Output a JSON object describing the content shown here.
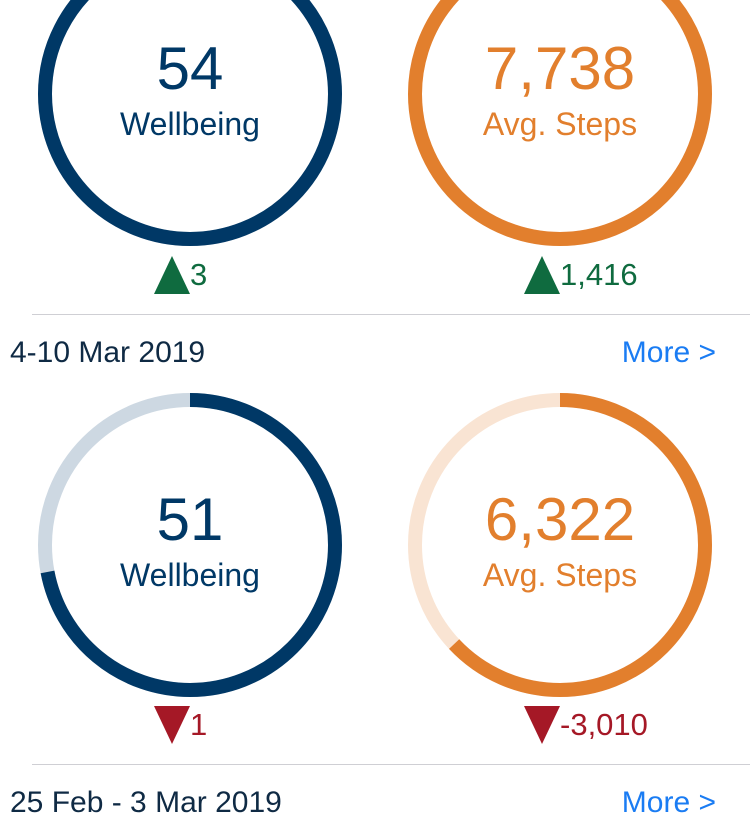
{
  "weeks": [
    {
      "wellbeing": {
        "value": "54",
        "label": "Wellbeing",
        "progress": 0.9,
        "delta": "3",
        "direction": "up"
      },
      "steps": {
        "value": "7,738",
        "label": "Avg. Steps",
        "progress": 0.95,
        "delta": "1,416",
        "direction": "up"
      }
    },
    {
      "date_label": "4-10 Mar 2019",
      "more_label": "More >",
      "wellbeing": {
        "value": "51",
        "label": "Wellbeing",
        "progress": 0.72,
        "delta": "1",
        "direction": "down"
      },
      "steps": {
        "value": "6,322",
        "label": "Avg. Steps",
        "progress": 0.63,
        "delta": "-3,010",
        "direction": "down"
      }
    },
    {
      "date_label": "25 Feb - 3 Mar 2019",
      "more_label": "More >"
    }
  ],
  "colors": {
    "navy": "#003866",
    "navy_track": "#cdd8e2",
    "orange": "#e27f2d",
    "orange_track": "#f9e4d3",
    "up": "#0f6b3f",
    "down": "#a51826",
    "link": "#1a7cf3"
  }
}
